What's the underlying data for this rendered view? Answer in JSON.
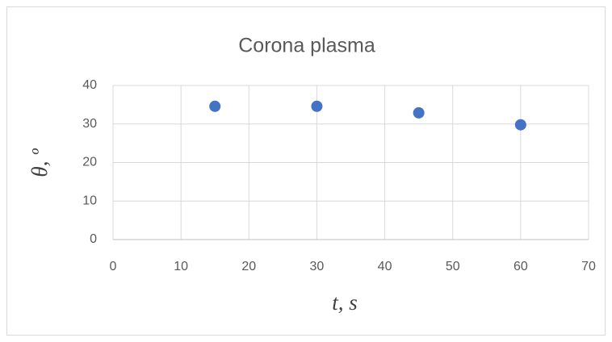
{
  "chart_data": {
    "type": "scatter",
    "title": "Corona plasma",
    "x_label": "t, s",
    "y_label": "θ, º",
    "series": [
      {
        "name": "Corona plasma",
        "color": "#4472c4",
        "x": [
          15,
          30,
          45,
          60
        ],
        "values": [
          34.6,
          34.6,
          32.9,
          29.8
        ]
      }
    ],
    "xlim": [
      0,
      70
    ],
    "xticks": [
      0,
      10,
      20,
      30,
      40,
      50,
      60,
      70
    ],
    "ylim": [
      0,
      40
    ],
    "yticks": [
      0,
      10,
      20,
      30,
      40
    ],
    "grid": true
  }
}
